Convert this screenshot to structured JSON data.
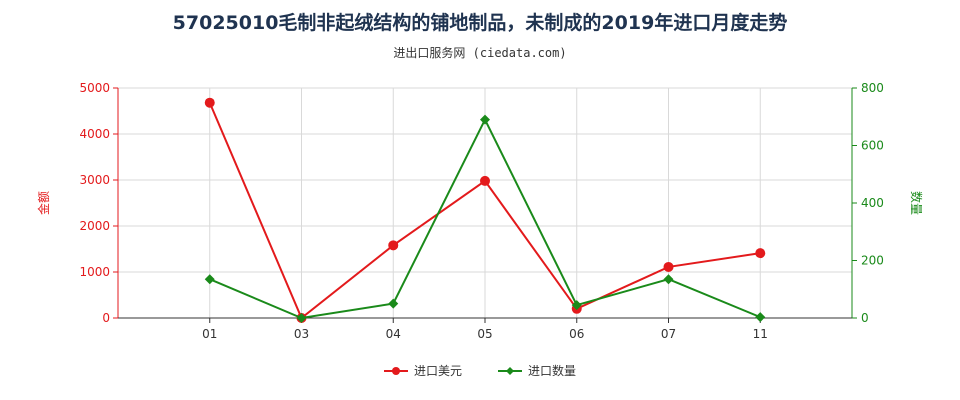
{
  "title": "57025010毛制非起绒结构的铺地制品，未制成的2019年进口月度走势",
  "subtitle": "进出口服务网 (ciedata.com)",
  "colors": {
    "amount": "#e31a1c",
    "quantity": "#1a8a1a",
    "grid": "#d9d9d9",
    "axis": "#333333"
  },
  "chart_data": {
    "type": "line",
    "categories": [
      "01",
      "03",
      "04",
      "05",
      "06",
      "07",
      "11"
    ],
    "left_axis": {
      "label": "金额",
      "range": [
        0,
        5000
      ],
      "ticks": [
        "0",
        "1000",
        "2000",
        "3000",
        "4000",
        "5000"
      ]
    },
    "right_axis": {
      "label": "数量",
      "range": [
        0,
        800
      ],
      "ticks": [
        "0",
        "200",
        "400",
        "600",
        "800"
      ]
    },
    "series": [
      {
        "name": "进口美元",
        "axis": "left",
        "values": [
          4680,
          0,
          1580,
          2980,
          200,
          1110,
          1410
        ]
      },
      {
        "name": "进口数量",
        "axis": "right",
        "values": [
          135,
          0,
          50,
          690,
          45,
          135,
          3
        ]
      }
    ],
    "legend_position": "bottom",
    "grid": true
  }
}
